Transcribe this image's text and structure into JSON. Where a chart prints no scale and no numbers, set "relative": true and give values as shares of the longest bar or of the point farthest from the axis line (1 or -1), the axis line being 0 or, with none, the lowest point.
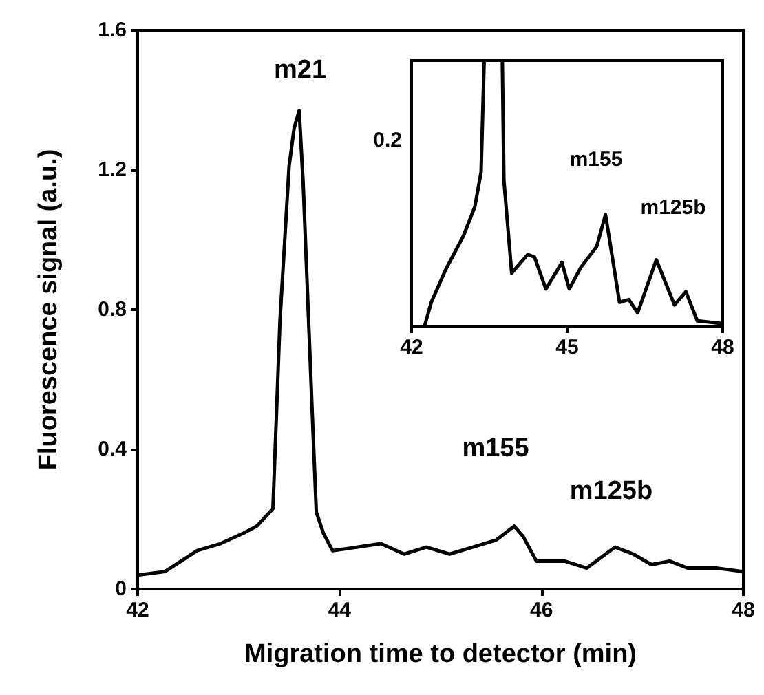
{
  "chart_data": [
    {
      "type": "line",
      "xlabel": "Migration time to detector (min)",
      "ylabel": "Fluorescence signal (a.u.)",
      "x": [
        42,
        42.27,
        42.59,
        42.82,
        43.05,
        43.18,
        43.34,
        43.41,
        43.5,
        43.55,
        43.6,
        43.64,
        43.73,
        43.77,
        43.84,
        43.93,
        44.18,
        44.41,
        44.64,
        44.86,
        45.09,
        45.32,
        45.55,
        45.73,
        45.82,
        45.95,
        46.23,
        46.45,
        46.73,
        46.91,
        47.09,
        47.27,
        47.45,
        47.73,
        48
      ],
      "series": [
        {
          "color": "#000000",
          "values": [
            0.04,
            0.05,
            0.11,
            0.13,
            0.16,
            0.18,
            0.23,
            0.77,
            1.21,
            1.32,
            1.37,
            1.16,
            0.5,
            0.22,
            0.16,
            0.11,
            0.12,
            0.13,
            0.1,
            0.12,
            0.1,
            0.12,
            0.14,
            0.18,
            0.15,
            0.08,
            0.08,
            0.06,
            0.12,
            0.1,
            0.07,
            0.08,
            0.06,
            0.06,
            0.05
          ]
        }
      ],
      "xlim": [
        42,
        48
      ],
      "xticks": [
        42,
        44,
        46,
        48
      ],
      "ylim": [
        0,
        1.6
      ],
      "yticks": [
        0,
        0.4,
        0.8,
        1.2,
        1.6
      ],
      "marker": "none",
      "line_style": "solid",
      "annotations": [
        "m21",
        "m155",
        "m125b"
      ]
    },
    {
      "type": "line",
      "relative": true,
      "x": [
        42.25,
        42.38,
        42.65,
        43.0,
        43.22,
        43.34,
        43.4,
        43.5,
        43.75,
        43.78,
        43.93,
        44.24,
        44.37,
        44.59,
        44.9,
        45.04,
        45.26,
        45.57,
        45.74,
        46.01,
        46.19,
        46.36,
        46.72,
        47.07,
        47.29,
        47.51,
        48
      ],
      "series": [
        {
          "color": "#000000",
          "values": [
            0,
            0.09,
            0.21,
            0.34,
            0.45,
            0.58,
            1,
            null,
            1,
            0.55,
            0.2,
            0.27,
            0.26,
            0.14,
            0.24,
            0.14,
            0.22,
            0.3,
            0.42,
            0.09,
            0.1,
            0.05,
            0.25,
            0.08,
            0.13,
            0.02,
            0.01
          ]
        }
      ],
      "xlim": [
        42,
        48
      ],
      "xticks": [
        42,
        45,
        48
      ],
      "marker": "none",
      "line_style": "solid",
      "annotations": [
        "m155",
        "m125b",
        "0.2"
      ]
    }
  ]
}
